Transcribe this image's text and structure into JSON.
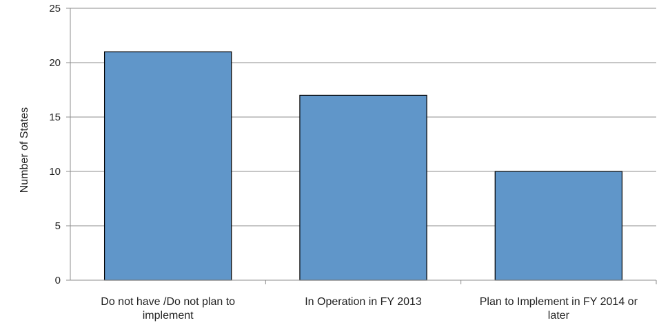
{
  "chart_data": {
    "type": "bar",
    "title": "",
    "xlabel": "",
    "ylabel": "Number of States",
    "ylim": [
      0,
      25
    ],
    "yticks": [
      0,
      5,
      10,
      15,
      20,
      25
    ],
    "grid": true,
    "categories": [
      [
        "Do not have /Do not plan to",
        "implement"
      ],
      [
        "In Operation in FY 2013"
      ],
      [
        "Plan to Implement in FY 2014 or",
        "later"
      ]
    ],
    "values": [
      21,
      17,
      10
    ],
    "colors": {
      "bar_fill": "#6096c9",
      "bar_stroke": "#000000",
      "grid": "#8c8c8c",
      "axis": "#8c8c8c"
    }
  }
}
